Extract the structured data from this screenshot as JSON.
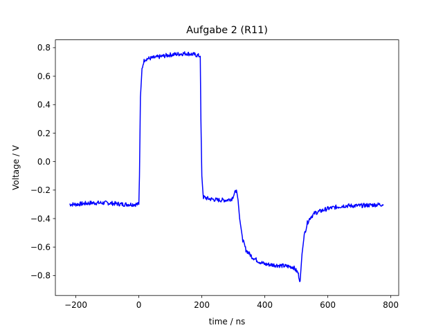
{
  "chart_data": {
    "type": "line",
    "title": "Aufgabe 2 (R11)",
    "xlabel": "time / ns",
    "ylabel": "Voltage / V",
    "xlim": [
      -265,
      825
    ],
    "ylim": [
      -0.94,
      0.855
    ],
    "xticks": [
      -200,
      0,
      200,
      400,
      600,
      800
    ],
    "yticks": [
      -0.8,
      -0.6,
      -0.4,
      -0.2,
      0.0,
      0.2,
      0.4,
      0.6,
      0.8
    ],
    "xtick_labels": [
      "−200",
      "0",
      "200",
      "400",
      "600",
      "800"
    ],
    "ytick_labels": [
      "−0.8",
      "−0.6",
      "−0.4",
      "−0.2",
      "0.0",
      "0.2",
      "0.4",
      "0.6",
      "0.8"
    ],
    "grid": false,
    "series": [
      {
        "color": "#0000ff",
        "x": [
          -220,
          -200,
          -150,
          -100,
          -50,
          0,
          2,
          5,
          10,
          15,
          20,
          50,
          100,
          150,
          180,
          195,
          197,
          200,
          203,
          205,
          220,
          250,
          280,
          295,
          305,
          310,
          315,
          320,
          330,
          340,
          360,
          380,
          400,
          450,
          490,
          505,
          512,
          518,
          525,
          535,
          545,
          560,
          600,
          650,
          700,
          776
        ],
        "y": [
          -0.3,
          -0.3,
          -0.29,
          -0.29,
          -0.3,
          -0.3,
          -0.1,
          0.45,
          0.65,
          0.7,
          0.72,
          0.73,
          0.75,
          0.76,
          0.75,
          0.74,
          0.3,
          -0.1,
          -0.2,
          -0.25,
          -0.26,
          -0.27,
          -0.27,
          -0.26,
          -0.22,
          -0.2,
          -0.27,
          -0.4,
          -0.55,
          -0.62,
          -0.67,
          -0.7,
          -0.72,
          -0.73,
          -0.74,
          -0.78,
          -0.84,
          -0.65,
          -0.52,
          -0.43,
          -0.39,
          -0.36,
          -0.33,
          -0.31,
          -0.31,
          -0.3
        ]
      }
    ]
  }
}
